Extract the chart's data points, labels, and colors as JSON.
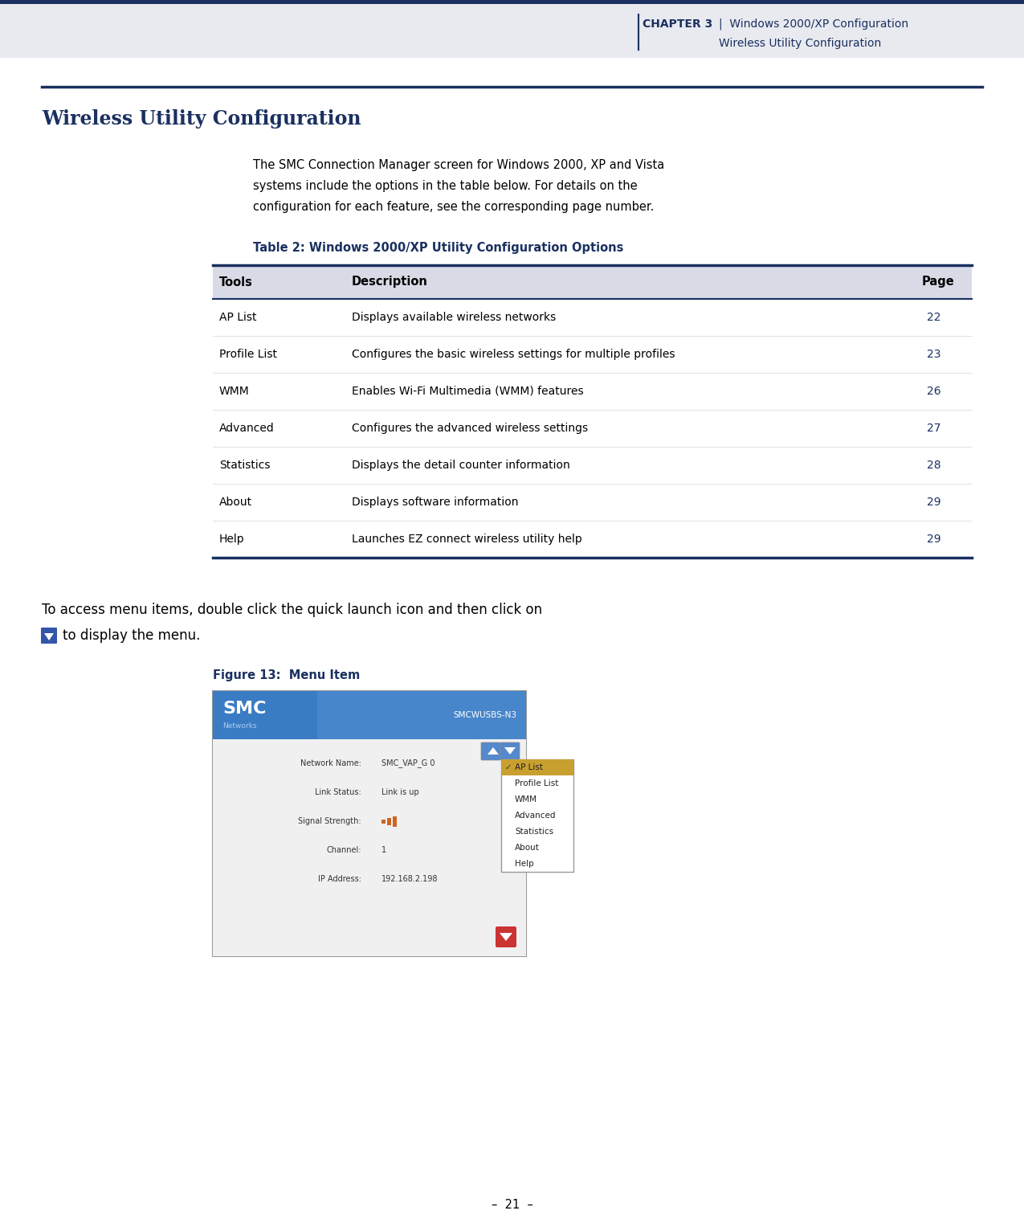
{
  "header_bg_color": "#e8eaf0",
  "header_top_bar_color": "#1a3060",
  "header_text_color": "#1a3060",
  "header_chapter": "CHAPTER 3",
  "header_line1": "Windows 2000/XP Configuration",
  "header_line2": "Wireless Utility Configuration",
  "page_bg_color": "#ffffff",
  "section_rule_color": "#1a3060",
  "section_title": "Wireless Utility Configuration",
  "section_title_color": "#1a3060",
  "body_text_lines": [
    "The SMC Connection Manager screen for Windows 2000, XP and Vista",
    "systems include the options in the table below. For details on the",
    "configuration for each feature, see the corresponding page number."
  ],
  "body_text_color": "#000000",
  "table_title": "Table 2: Windows 2000/XP Utility Configuration Options",
  "table_title_color": "#1a3060",
  "table_header_bg": "#d8dae6",
  "table_rule_color": "#1a3060",
  "table_tools": [
    "AP List",
    "Profile List",
    "WMM",
    "Advanced",
    "Statistics",
    "About",
    "Help"
  ],
  "table_descriptions": [
    "Displays available wireless networks",
    "Configures the basic wireless settings for multiple profiles",
    "Enables Wi-Fi Multimedia (WMM) features",
    "Configures the advanced wireless settings",
    "Displays the detail counter information",
    "Displays software information",
    "Launches EZ connect wireless utility help"
  ],
  "table_pages": [
    "22",
    "23",
    "26",
    "27",
    "28",
    "29",
    "29"
  ],
  "table_page_color": "#1a3060",
  "access_text_line1": "To access menu items, double click the quick launch icon and then click on",
  "access_text_line2": "to display the menu.",
  "figure_label": "Figure 13:  Menu Item",
  "figure_label_color": "#1a3060",
  "page_number": "–  21  –",
  "page_number_color": "#000000",
  "smc_blue": "#3a7cc4",
  "smc_menu_items": [
    "AP List",
    "Profile List",
    "WMM",
    "Advanced",
    "Statistics",
    "About",
    "Help"
  ],
  "smc_info_labels": [
    "Network Name:",
    "Link Status:",
    "Signal Strength:",
    "Channel:",
    "IP Address:"
  ],
  "smc_info_values": [
    "SMC_VAP_G 0",
    "Link is up",
    "",
    "1",
    "192.168.2.198"
  ],
  "icon_color": "#3355aa",
  "dropdown_highlight": "#c8a030",
  "nav_btn_color": "#cc3333",
  "orange_bar_color": "#cc6622"
}
